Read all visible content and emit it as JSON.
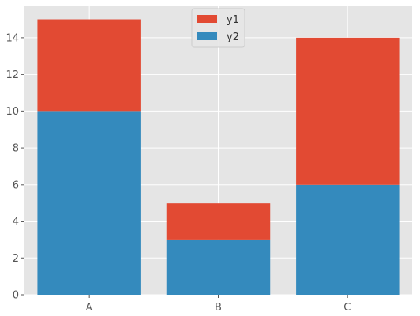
{
  "chart_data": {
    "type": "bar",
    "stacked": true,
    "categories": [
      "A",
      "B",
      "C"
    ],
    "series": [
      {
        "name": "y2",
        "values": [
          10,
          3,
          6
        ],
        "color": "#348ABD"
      },
      {
        "name": "y1",
        "values": [
          5,
          2,
          8
        ],
        "color": "#E24A33"
      }
    ],
    "legend_order": [
      "y1",
      "y2"
    ],
    "ylim": [
      0,
      15.75
    ],
    "yticks": [
      0,
      2,
      4,
      6,
      8,
      10,
      12,
      14
    ],
    "title": "",
    "xlabel": "",
    "ylabel": "",
    "grid": true,
    "legend_position": "top-center",
    "colors": {
      "plot_background": "#E5E5E5",
      "grid": "#FFFFFF",
      "tick_text": "#555555"
    }
  }
}
